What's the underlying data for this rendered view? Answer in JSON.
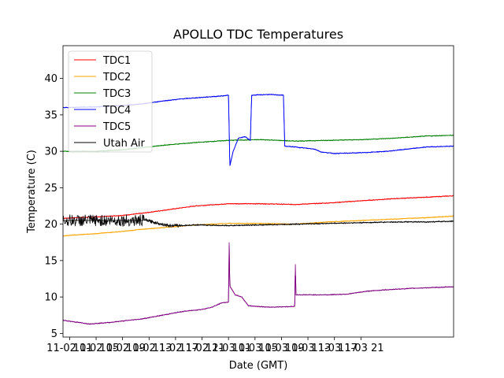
{
  "chart_data": {
    "type": "line",
    "title": "APOLLO TDC Temperatures",
    "xlabel": "Date (GMT)",
    "ylabel": "Temperature (C)",
    "xlim": [
      0,
      59
    ],
    "ylim": [
      4.5,
      44.5
    ],
    "x_unit": "hours since 11-02 00:00 GMT",
    "yticks": [
      5,
      10,
      15,
      20,
      25,
      30,
      35,
      40
    ],
    "xticks": [
      {
        "x": 1,
        "label": "11-02 01"
      },
      {
        "x": 5,
        "label": "11-02 05"
      },
      {
        "x": 9,
        "label": "11-02 09"
      },
      {
        "x": 13,
        "label": "11-02 13"
      },
      {
        "x": 17,
        "label": "11-02 17"
      },
      {
        "x": 21,
        "label": "11-02 21"
      },
      {
        "x": 25,
        "label": "11-03 01"
      },
      {
        "x": 29,
        "label": "11-03 05"
      },
      {
        "x": 33,
        "label": "11-03 09"
      },
      {
        "x": 37,
        "label": "11-03 13"
      },
      {
        "x": 41,
        "label": "11-03 17"
      },
      {
        "x": 45,
        "label": "11-03 21"
      }
    ],
    "legend_position": "top-left",
    "series": [
      {
        "name": "TDC1",
        "color": "#ff0000",
        "points": [
          [
            0,
            20.8
          ],
          [
            5,
            21.0
          ],
          [
            9,
            21.2
          ],
          [
            12,
            21.5
          ],
          [
            16,
            22.0
          ],
          [
            20,
            22.5
          ],
          [
            25,
            22.8
          ],
          [
            30,
            22.8
          ],
          [
            35,
            22.7
          ],
          [
            40,
            22.9
          ],
          [
            45,
            23.2
          ],
          [
            50,
            23.5
          ],
          [
            55,
            23.7
          ],
          [
            59,
            23.9
          ]
        ]
      },
      {
        "name": "TDC2",
        "color": "#ffa500",
        "points": [
          [
            0,
            18.4
          ],
          [
            5,
            18.7
          ],
          [
            9,
            19.0
          ],
          [
            12,
            19.3
          ],
          [
            16,
            19.6
          ],
          [
            20,
            19.9
          ],
          [
            25,
            20.1
          ],
          [
            30,
            20.1
          ],
          [
            35,
            20.0
          ],
          [
            40,
            20.3
          ],
          [
            45,
            20.5
          ],
          [
            50,
            20.7
          ],
          [
            55,
            20.9
          ],
          [
            59,
            21.1
          ]
        ]
      },
      {
        "name": "TDC3",
        "color": "#008000",
        "points": [
          [
            0,
            30.0
          ],
          [
            5,
            30.0
          ],
          [
            9,
            30.2
          ],
          [
            12,
            30.5
          ],
          [
            16,
            30.9
          ],
          [
            20,
            31.2
          ],
          [
            25,
            31.5
          ],
          [
            30,
            31.6
          ],
          [
            35,
            31.4
          ],
          [
            40,
            31.5
          ],
          [
            45,
            31.6
          ],
          [
            50,
            31.8
          ],
          [
            55,
            32.1
          ],
          [
            59,
            32.2
          ]
        ]
      },
      {
        "name": "TDC4",
        "color": "#0000ff",
        "points": [
          [
            0,
            36.0
          ],
          [
            5,
            36.1
          ],
          [
            9,
            36.3
          ],
          [
            12,
            36.5
          ],
          [
            15,
            36.9
          ],
          [
            18,
            37.2
          ],
          [
            21,
            37.4
          ],
          [
            24,
            37.6
          ],
          [
            25,
            37.7
          ],
          [
            25.2,
            28.0
          ],
          [
            25.7,
            30.0
          ],
          [
            26.5,
            31.8
          ],
          [
            27.5,
            32.0
          ],
          [
            28.3,
            31.5
          ],
          [
            28.5,
            37.7
          ],
          [
            31,
            37.8
          ],
          [
            33.3,
            37.7
          ],
          [
            33.5,
            30.7
          ],
          [
            35,
            30.6
          ],
          [
            36,
            30.5
          ],
          [
            38,
            30.3
          ],
          [
            39,
            29.9
          ],
          [
            41,
            29.7
          ],
          [
            45,
            29.8
          ],
          [
            49,
            30.0
          ],
          [
            52,
            30.3
          ],
          [
            55,
            30.6
          ],
          [
            59,
            30.7
          ]
        ]
      },
      {
        "name": "TDC5",
        "color": "#800080",
        "points": [
          [
            0,
            6.8
          ],
          [
            4,
            6.3
          ],
          [
            7,
            6.5
          ],
          [
            9,
            6.7
          ],
          [
            12,
            7.0
          ],
          [
            15,
            7.5
          ],
          [
            18,
            8.0
          ],
          [
            21,
            8.3
          ],
          [
            22.5,
            8.6
          ],
          [
            24,
            9.2
          ],
          [
            25,
            9.3
          ],
          [
            25.1,
            17.5
          ],
          [
            25.2,
            11.5
          ],
          [
            26,
            10.3
          ],
          [
            27,
            10.0
          ],
          [
            28,
            8.8
          ],
          [
            31,
            8.6
          ],
          [
            35,
            8.7
          ],
          [
            35.1,
            14.5
          ],
          [
            35.2,
            10.3
          ],
          [
            40,
            10.3
          ],
          [
            43,
            10.4
          ],
          [
            46,
            10.8
          ],
          [
            49,
            11.0
          ],
          [
            53,
            11.2
          ],
          [
            59,
            11.4
          ]
        ]
      },
      {
        "name": "Utah Air",
        "color": "#000000",
        "points": [
          [
            0,
            20.5
          ],
          [
            4,
            20.5
          ],
          [
            8,
            20.5
          ],
          [
            12,
            20.5
          ],
          [
            12.3,
            20.6
          ],
          [
            14,
            20.2
          ],
          [
            16,
            19.8
          ],
          [
            18,
            19.8
          ],
          [
            20,
            19.9
          ],
          [
            25,
            19.8
          ],
          [
            30,
            19.9
          ],
          [
            35,
            20.0
          ],
          [
            40,
            20.1
          ],
          [
            45,
            20.2
          ],
          [
            50,
            20.3
          ],
          [
            55,
            20.3
          ],
          [
            59,
            20.4
          ]
        ]
      }
    ]
  }
}
